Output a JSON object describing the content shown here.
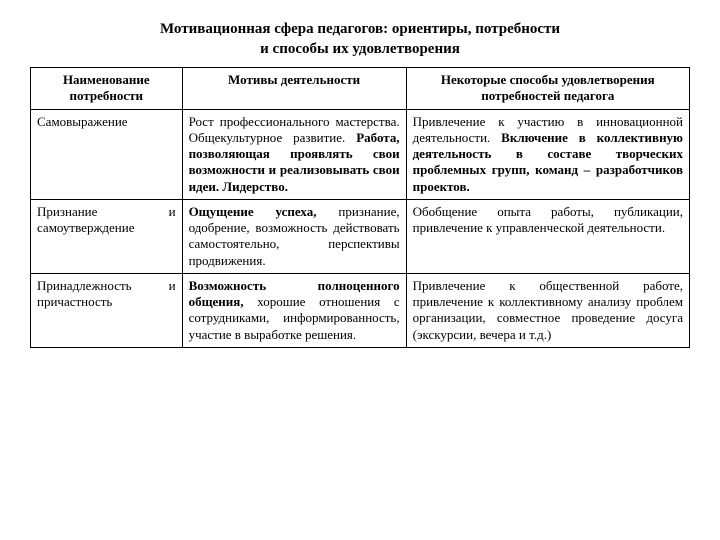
{
  "title_line1": "Мотивационная сфера педагогов: ориентиры, потребности",
  "title_line2": "и способы их удовлетворения",
  "headers": {
    "col1": "Наименование потребности",
    "col2": "Мотивы деятельности",
    "col3": "Некоторые способы удовлетворения потребностей педагога"
  },
  "rows": [
    {
      "name": "Самовыражение",
      "motives_html": "Рост профессионального мастерства. Общекультурное развитие. <b>Работа, позволяющая проявлять свои возможности и реализовывать свои идеи. Лидерство.</b>",
      "ways_html": "Привлечение к участию в инновационной деятельности. <b>Включение в коллективную деятельность в составе творческих проблемных групп, команд – разработчиков проектов.</b>"
    },
    {
      "name": "Признание и самоутверждение",
      "motives_html": "<b>Ощущение успеха,</b> признание, одобрение, возможность действовать самостоятельно, перспективы продвижения.",
      "ways_html": "Обобщение опыта работы, публикации, привлечение к управленческой деятельности."
    },
    {
      "name": "Принадлежность и причастность",
      "motives_html": "<b>Возможность полноценного общения,</b> хорошие отношения с сотрудниками, информированность, участие в выработке решения.",
      "ways_html": "Привлечение к общественной работе, привлечение к коллективному анализу проблем организации, совместное проведение досуга (экскурсии, вечера и т.д.)"
    }
  ],
  "styling": {
    "background_color": "#ffffff",
    "text_color": "#000000",
    "border_color": "#000000",
    "font_family": "Times New Roman",
    "title_fontsize": 15,
    "cell_fontsize": 13,
    "col_widths_pct": [
      23,
      34,
      43
    ]
  }
}
